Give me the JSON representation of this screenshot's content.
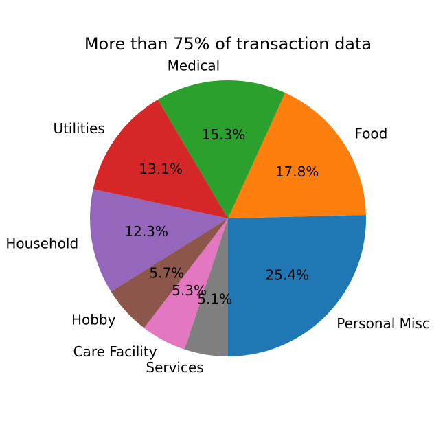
{
  "chart_data": {
    "type": "pie",
    "title": "More than 75% of transaction data",
    "start_angle_deg": -90,
    "direction": "counterclockwise",
    "slices": [
      {
        "label": "Personal Misc",
        "value": 25.4,
        "pct_label": "25.4%",
        "color": "#1f77b4"
      },
      {
        "label": "Food",
        "value": 17.8,
        "pct_label": "17.8%",
        "color": "#ff7f0e"
      },
      {
        "label": "Medical",
        "value": 15.3,
        "pct_label": "15.3%",
        "color": "#2ca02c"
      },
      {
        "label": "Utilities",
        "value": 13.1,
        "pct_label": "13.1%",
        "color": "#d62728"
      },
      {
        "label": "Household",
        "value": 12.3,
        "pct_label": "12.3%",
        "color": "#9467bd"
      },
      {
        "label": "Hobby",
        "value": 5.7,
        "pct_label": "5.7%",
        "color": "#8c564b"
      },
      {
        "label": "Care Facility",
        "value": 5.3,
        "pct_label": "5.3%",
        "color": "#e377c2"
      },
      {
        "label": "Services",
        "value": 5.1,
        "pct_label": "5.1%",
        "color": "#7f7f7f"
      }
    ]
  }
}
